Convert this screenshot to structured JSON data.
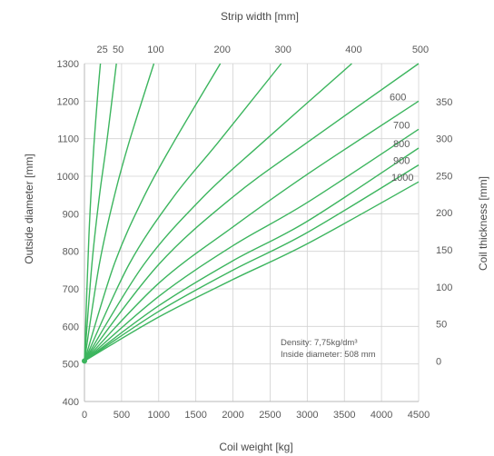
{
  "chart_data": {
    "type": "line",
    "title": "Strip width [mm]",
    "xlabel": "Coil weight [kg]",
    "ylabel": "Outside diameter [mm]",
    "y2label": "Coil thickness [mm]",
    "xlim": [
      0,
      4500
    ],
    "ylim": [
      400,
      1300
    ],
    "x_ticks": [
      "0",
      "500",
      "1000",
      "1500",
      "2000",
      "2500",
      "3000",
      "3500",
      "4000",
      "4500"
    ],
    "y_ticks": [
      "400",
      "500",
      "600",
      "700",
      "800",
      "900",
      "1000",
      "1100",
      "1200",
      "1300"
    ],
    "y2_ticks": [
      "0",
      "50",
      "100",
      "150",
      "200",
      "250",
      "300",
      "350"
    ],
    "grid": true,
    "line_color": "#3cb55e",
    "density_note": "Density: 7,75kg/dm³",
    "inside_diameter_note": "Inside diameter: 508 mm",
    "inside_diameter": 508,
    "series": [
      {
        "name": "25",
        "x": [
          0,
          60,
          120,
          180,
          215
        ],
        "y": [
          508,
          840,
          1060,
          1220,
          1300
        ]
      },
      {
        "name": "50",
        "x": [
          0,
          100,
          200,
          300,
          430
        ],
        "y": [
          508,
          765,
          945,
          1090,
          1300
        ]
      },
      {
        "name": "100",
        "x": [
          0,
          200,
          400,
          600,
          935
        ],
        "y": [
          508,
          765,
          945,
          1090,
          1300
        ]
      },
      {
        "name": "200",
        "x": [
          0,
          400,
          800,
          1200,
          1830
        ],
        "y": [
          508,
          765,
          945,
          1090,
          1300
        ]
      },
      {
        "name": "300",
        "x": [
          0,
          600,
          1200,
          1800,
          2650
        ],
        "y": [
          508,
          765,
          945,
          1090,
          1300
        ]
      },
      {
        "name": "400",
        "x": [
          0,
          800,
          1600,
          2400,
          3600
        ],
        "y": [
          508,
          765,
          945,
          1090,
          1300
        ]
      },
      {
        "name": "500",
        "x": [
          0,
          1000,
          2000,
          3000,
          4500
        ],
        "y": [
          508,
          765,
          945,
          1090,
          1300
        ]
      },
      {
        "name": "600",
        "x": [
          0,
          1000,
          2000,
          3000,
          4500
        ],
        "y": [
          508,
          715,
          865,
          1005,
          1200
        ]
      },
      {
        "name": "700",
        "x": [
          0,
          1000,
          2000,
          3000,
          4500
        ],
        "y": [
          508,
          680,
          815,
          930,
          1125
        ]
      },
      {
        "name": "800",
        "x": [
          0,
          1000,
          2000,
          3000,
          4500
        ],
        "y": [
          508,
          655,
          775,
          880,
          1075
        ]
      },
      {
        "name": "900",
        "x": [
          0,
          1000,
          2000,
          3000,
          4500
        ],
        "y": [
          508,
          640,
          750,
          850,
          1030
        ]
      },
      {
        "name": "1000",
        "x": [
          0,
          1000,
          2000,
          3000,
          4500
        ],
        "y": [
          508,
          625,
          725,
          820,
          985
        ]
      }
    ]
  }
}
